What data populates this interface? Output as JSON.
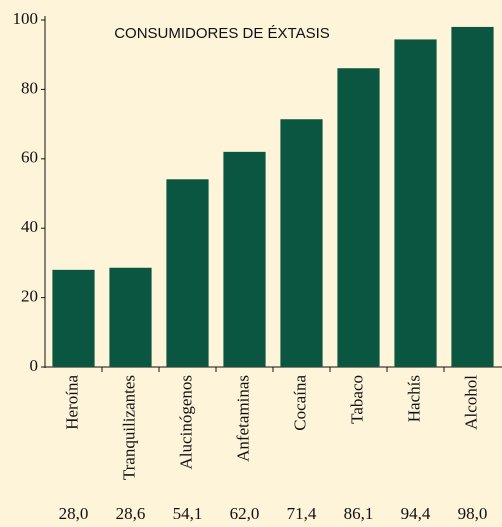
{
  "chart_data": {
    "type": "bar",
    "title": "CONSUMIDORES DE ÉXTASIS",
    "categories": [
      "Heroína",
      "Tranquilizantes",
      "Alucinógenos",
      "Anfetaminas",
      "Cocaína",
      "Tabaco",
      "Hachís",
      "Alcohol"
    ],
    "values": [
      28.0,
      28.6,
      54.1,
      62.0,
      71.4,
      86.1,
      94.4,
      98.0
    ],
    "value_labels": [
      "28,0",
      "28,6",
      "54,1",
      "62,0",
      "71,4",
      "86,1",
      "94,4",
      "98,0"
    ],
    "color": "#0b5641",
    "ylim": [
      0,
      100
    ],
    "yticks": [
      0,
      20,
      40,
      60,
      80,
      100
    ],
    "grid": false
  }
}
